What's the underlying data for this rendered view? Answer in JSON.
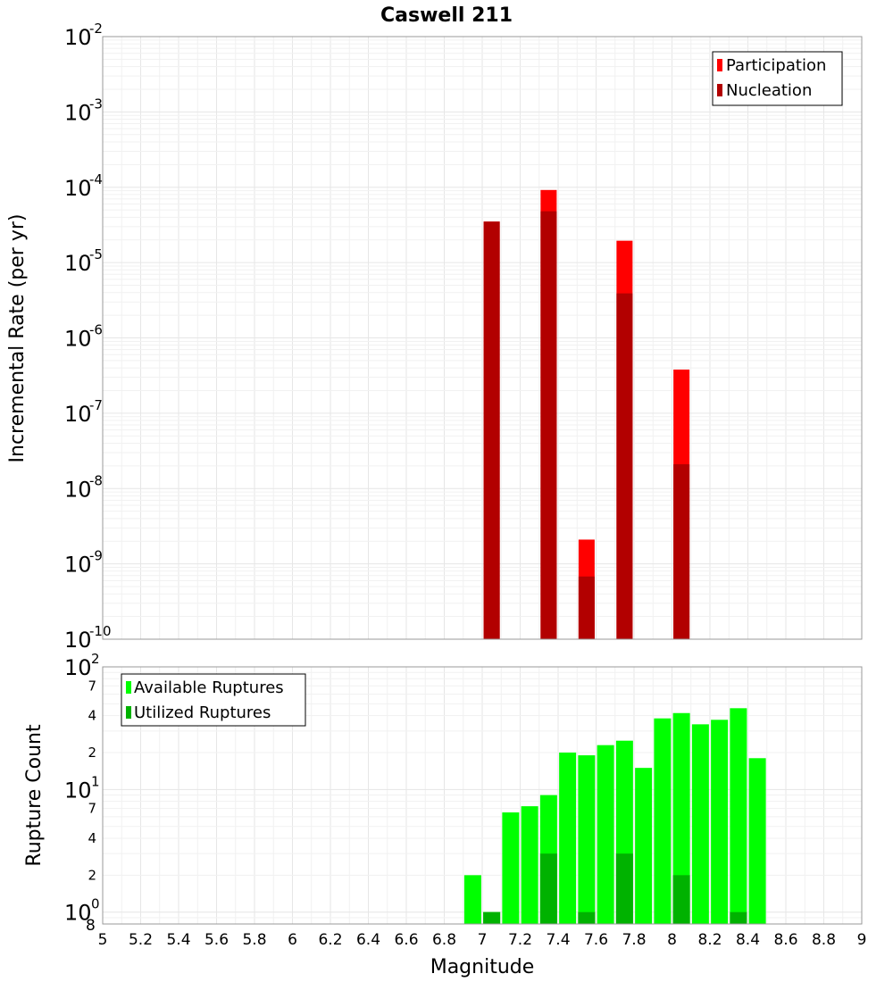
{
  "chart_data": [
    {
      "type": "bar",
      "panel": "top",
      "title": "Caswell 211",
      "xlabel": "Magnitude",
      "ylabel": "Incremental Rate (per yr)",
      "yscale": "log",
      "ylim": [
        1e-10,
        0.01
      ],
      "xlim": [
        5,
        9
      ],
      "y_tick_labels": [
        {
          "base": "10",
          "exp": "-10"
        },
        {
          "base": "10",
          "exp": "-9"
        },
        {
          "base": "10",
          "exp": "-8"
        },
        {
          "base": "10",
          "exp": "-7"
        },
        {
          "base": "10",
          "exp": "-6"
        },
        {
          "base": "10",
          "exp": "-5"
        },
        {
          "base": "10",
          "exp": "-4"
        },
        {
          "base": "10",
          "exp": "-3"
        },
        {
          "base": "10",
          "exp": "-2"
        }
      ],
      "legend": {
        "position": "top-right",
        "items": [
          {
            "label": "Participation",
            "color": "#ff0000"
          },
          {
            "label": "Nucleation",
            "color": "#b20000"
          }
        ]
      },
      "series": [
        {
          "name": "Participation",
          "color": "#ff0000",
          "points": [
            {
              "x": 7.05,
              "y": 3.5e-05
            },
            {
              "x": 7.35,
              "y": 9.2e-05
            },
            {
              "x": 7.55,
              "y": 2.1e-09
            },
            {
              "x": 7.75,
              "y": 1.95e-05
            },
            {
              "x": 8.05,
              "y": 3.8e-07
            }
          ]
        },
        {
          "name": "Nucleation",
          "color": "#b20000",
          "points": [
            {
              "x": 7.05,
              "y": 3.5e-05
            },
            {
              "x": 7.35,
              "y": 4.8e-05
            },
            {
              "x": 7.55,
              "y": 6.8e-10
            },
            {
              "x": 7.75,
              "y": 3.9e-06
            },
            {
              "x": 8.05,
              "y": 2.1e-08
            }
          ]
        }
      ]
    },
    {
      "type": "bar",
      "panel": "bottom",
      "xlabel": "Magnitude",
      "ylabel": "Rupture Count",
      "yscale": "log",
      "ylim": [
        0.8,
        100
      ],
      "xlim": [
        5,
        9
      ],
      "x_tick_labels": [
        "5",
        "5.2",
        "5.4",
        "5.6",
        "5.8",
        "6",
        "6.2",
        "6.4",
        "6.6",
        "6.8",
        "7",
        "7.2",
        "7.4",
        "7.6",
        "7.8",
        "8",
        "8.2",
        "8.4",
        "8.6",
        "8.8",
        "9"
      ],
      "y_major_ticks": [
        {
          "value": 1,
          "base": "10",
          "exp": "0"
        },
        {
          "value": 10,
          "base": "10",
          "exp": "1"
        },
        {
          "value": 100,
          "base": "10",
          "exp": "2"
        }
      ],
      "y_minor_ticks": [
        {
          "value": 2,
          "label": "2"
        },
        {
          "value": 4,
          "label": "4"
        },
        {
          "value": 7,
          "label": "7"
        },
        {
          "value": 20,
          "label": "2"
        },
        {
          "value": 40,
          "label": "4"
        },
        {
          "value": 70,
          "label": "7"
        }
      ],
      "y_bottom_label": "8",
      "legend": {
        "position": "top-left",
        "items": [
          {
            "label": "Available Ruptures",
            "color": "#00ff00"
          },
          {
            "label": "Utilized Ruptures",
            "color": "#00b200"
          }
        ]
      },
      "series": [
        {
          "name": "Available Ruptures",
          "color": "#00ff00",
          "points": [
            {
              "x": 6.95,
              "y": 2
            },
            {
              "x": 7.05,
              "y": 1
            },
            {
              "x": 7.15,
              "y": 6.5
            },
            {
              "x": 7.25,
              "y": 7.3
            },
            {
              "x": 7.35,
              "y": 9
            },
            {
              "x": 7.45,
              "y": 20
            },
            {
              "x": 7.55,
              "y": 19
            },
            {
              "x": 7.65,
              "y": 23
            },
            {
              "x": 7.75,
              "y": 25
            },
            {
              "x": 7.85,
              "y": 15
            },
            {
              "x": 7.95,
              "y": 38
            },
            {
              "x": 8.05,
              "y": 42
            },
            {
              "x": 8.15,
              "y": 34
            },
            {
              "x": 8.25,
              "y": 37
            },
            {
              "x": 8.35,
              "y": 46
            },
            {
              "x": 8.45,
              "y": 18
            }
          ]
        },
        {
          "name": "Utilized Ruptures",
          "color": "#00b200",
          "points": [
            {
              "x": 7.05,
              "y": 1
            },
            {
              "x": 7.35,
              "y": 3
            },
            {
              "x": 7.55,
              "y": 1
            },
            {
              "x": 7.75,
              "y": 3
            },
            {
              "x": 8.05,
              "y": 2
            },
            {
              "x": 8.35,
              "y": 1
            }
          ]
        }
      ]
    }
  ]
}
